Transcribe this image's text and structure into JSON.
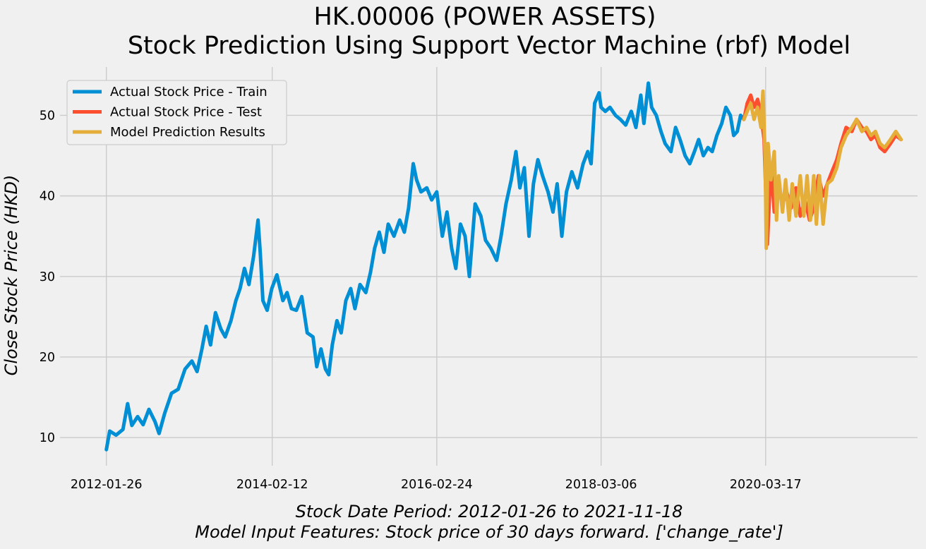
{
  "chart_data": {
    "type": "line",
    "title": [
      "HK.00006 (POWER ASSETS)",
      "Stock Prediction Using Support Vector Machine (rbf) Model"
    ],
    "xlabel": [
      "Stock Date Period:  2012-01-26 to 2021-11-18",
      "Model Input Features:  Stock price of 30 days forward. ['change_rate']"
    ],
    "ylabel": "Close Stock Price (HKD)",
    "x_ticks": [
      "2012-01-26",
      "2014-02-12",
      "2016-02-24",
      "2018-03-06",
      "2020-03-17"
    ],
    "y_ticks": [
      10,
      20,
      30,
      40,
      50
    ],
    "xlim": [
      "2011-07-01",
      "2022-01-31"
    ],
    "ylim": [
      6.5,
      56
    ],
    "grid": true,
    "legend_position": "top-left",
    "series": [
      {
        "name": "Actual Stock Price - Train",
        "color": "#008fd5",
        "points": [
          [
            "2012-01-26",
            8.5
          ],
          [
            "2012-02-10",
            10.8
          ],
          [
            "2012-03-10",
            10.3
          ],
          [
            "2012-04-10",
            11.0
          ],
          [
            "2012-05-01",
            14.2
          ],
          [
            "2012-05-20",
            11.5
          ],
          [
            "2012-06-15",
            12.6
          ],
          [
            "2012-07-10",
            11.6
          ],
          [
            "2012-08-05",
            13.5
          ],
          [
            "2012-09-01",
            12.0
          ],
          [
            "2012-09-20",
            10.5
          ],
          [
            "2012-10-15",
            13.0
          ],
          [
            "2012-11-15",
            15.5
          ],
          [
            "2012-12-15",
            16.0
          ],
          [
            "2013-01-15",
            18.5
          ],
          [
            "2013-02-15",
            19.5
          ],
          [
            "2013-03-10",
            18.2
          ],
          [
            "2013-04-01",
            21.0
          ],
          [
            "2013-04-20",
            23.8
          ],
          [
            "2013-05-10",
            21.5
          ],
          [
            "2013-06-01",
            25.5
          ],
          [
            "2013-06-25",
            23.5
          ],
          [
            "2013-07-15",
            22.5
          ],
          [
            "2013-08-10",
            24.5
          ],
          [
            "2013-09-01",
            27.0
          ],
          [
            "2013-09-20",
            28.5
          ],
          [
            "2013-10-10",
            31.0
          ],
          [
            "2013-10-30",
            29.0
          ],
          [
            "2013-11-20",
            32.5
          ],
          [
            "2013-12-10",
            37.0
          ],
          [
            "2013-12-20",
            33.0
          ],
          [
            "2014-01-01",
            27.0
          ],
          [
            "2014-01-20",
            25.8
          ],
          [
            "2014-02-10",
            28.5
          ],
          [
            "2014-03-05",
            30.2
          ],
          [
            "2014-04-01",
            27.0
          ],
          [
            "2014-04-20",
            28.0
          ],
          [
            "2014-05-10",
            26.0
          ],
          [
            "2014-06-01",
            25.8
          ],
          [
            "2014-06-25",
            27.5
          ],
          [
            "2014-07-20",
            23.0
          ],
          [
            "2014-08-15",
            22.5
          ],
          [
            "2014-09-01",
            18.8
          ],
          [
            "2014-09-20",
            21.0
          ],
          [
            "2014-10-10",
            18.5
          ],
          [
            "2014-10-25",
            17.8
          ],
          [
            "2014-11-10",
            21.5
          ],
          [
            "2014-12-01",
            24.5
          ],
          [
            "2014-12-20",
            23.0
          ],
          [
            "2015-01-10",
            27.0
          ],
          [
            "2015-02-01",
            28.5
          ],
          [
            "2015-02-20",
            26.0
          ],
          [
            "2015-03-15",
            29.0
          ],
          [
            "2015-04-10",
            28.0
          ],
          [
            "2015-05-01",
            30.5
          ],
          [
            "2015-05-20",
            33.5
          ],
          [
            "2015-06-10",
            35.5
          ],
          [
            "2015-07-01",
            33.0
          ],
          [
            "2015-07-20",
            36.5
          ],
          [
            "2015-08-15",
            35.0
          ],
          [
            "2015-09-10",
            37.0
          ],
          [
            "2015-10-01",
            35.5
          ],
          [
            "2015-10-20",
            38.5
          ],
          [
            "2015-11-10",
            44.0
          ],
          [
            "2015-11-25",
            42.0
          ],
          [
            "2015-12-15",
            40.5
          ],
          [
            "2016-01-10",
            41.0
          ],
          [
            "2016-02-01",
            39.5
          ],
          [
            "2016-02-24",
            40.5
          ],
          [
            "2016-03-20",
            35.0
          ],
          [
            "2016-04-10",
            38.0
          ],
          [
            "2016-05-01",
            33.5
          ],
          [
            "2016-05-20",
            31.0
          ],
          [
            "2016-06-10",
            36.5
          ],
          [
            "2016-07-01",
            35.0
          ],
          [
            "2016-07-20",
            30.0
          ],
          [
            "2016-08-15",
            39.0
          ],
          [
            "2016-09-10",
            37.5
          ],
          [
            "2016-10-01",
            34.5
          ],
          [
            "2016-10-25",
            33.5
          ],
          [
            "2016-11-20",
            32.0
          ],
          [
            "2016-12-10",
            35.0
          ],
          [
            "2017-01-01",
            39.0
          ],
          [
            "2017-01-25",
            42.0
          ],
          [
            "2017-02-15",
            45.5
          ],
          [
            "2017-03-05",
            41.0
          ],
          [
            "2017-03-25",
            43.5
          ],
          [
            "2017-04-15",
            35.0
          ],
          [
            "2017-05-05",
            41.5
          ],
          [
            "2017-05-25",
            44.5
          ],
          [
            "2017-06-15",
            42.5
          ],
          [
            "2017-07-10",
            40.5
          ],
          [
            "2017-08-01",
            38.0
          ],
          [
            "2017-08-20",
            41.5
          ],
          [
            "2017-09-10",
            35.0
          ],
          [
            "2017-10-01",
            40.5
          ],
          [
            "2017-10-25",
            43.0
          ],
          [
            "2017-11-20",
            41.0
          ],
          [
            "2017-12-15",
            44.0
          ],
          [
            "2018-01-05",
            45.5
          ],
          [
            "2018-01-20",
            44.0
          ],
          [
            "2018-02-05",
            51.5
          ],
          [
            "2018-02-25",
            52.8
          ],
          [
            "2018-03-06",
            51.0
          ],
          [
            "2018-03-25",
            50.5
          ],
          [
            "2018-04-15",
            51.0
          ],
          [
            "2018-05-10",
            50.0
          ],
          [
            "2018-06-01",
            49.5
          ],
          [
            "2018-06-25",
            48.8
          ],
          [
            "2018-07-20",
            50.5
          ],
          [
            "2018-08-10",
            48.5
          ],
          [
            "2018-09-01",
            52.5
          ],
          [
            "2018-09-15",
            49.0
          ],
          [
            "2018-10-05",
            54.0
          ],
          [
            "2018-10-20",
            51.0
          ],
          [
            "2018-11-10",
            50.0
          ],
          [
            "2018-12-01",
            48.0
          ],
          [
            "2018-12-20",
            46.5
          ],
          [
            "2019-01-15",
            45.5
          ],
          [
            "2019-02-05",
            48.5
          ],
          [
            "2019-02-25",
            47.0
          ],
          [
            "2019-03-20",
            45.0
          ],
          [
            "2019-04-10",
            44.0
          ],
          [
            "2019-05-01",
            45.5
          ],
          [
            "2019-05-20",
            47.0
          ],
          [
            "2019-06-10",
            45.0
          ],
          [
            "2019-07-01",
            46.0
          ],
          [
            "2019-07-20",
            45.5
          ],
          [
            "2019-08-10",
            47.5
          ],
          [
            "2019-09-01",
            49.0
          ],
          [
            "2019-09-20",
            51.0
          ],
          [
            "2019-10-10",
            50.0
          ],
          [
            "2019-10-25",
            47.5
          ],
          [
            "2019-11-10",
            48.0
          ],
          [
            "2019-11-25",
            50.0
          ],
          [
            "2019-12-10",
            49.5
          ]
        ]
      },
      {
        "name": "Actual Stock Price - Test",
        "color": "#fc4f30",
        "points": [
          [
            "2019-12-10",
            49.5
          ],
          [
            "2019-12-25",
            51.5
          ],
          [
            "2020-01-10",
            52.5
          ],
          [
            "2020-01-25",
            51.0
          ],
          [
            "2020-02-10",
            52.0
          ],
          [
            "2020-02-25",
            50.0
          ],
          [
            "2020-03-10",
            47.0
          ],
          [
            "2020-03-25",
            34.0
          ],
          [
            "2020-04-10",
            44.0
          ],
          [
            "2020-04-25",
            38.0
          ],
          [
            "2020-05-10",
            42.0
          ],
          [
            "2020-06-01",
            39.0
          ],
          [
            "2020-06-20",
            40.5
          ],
          [
            "2020-07-10",
            38.5
          ],
          [
            "2020-08-01",
            41.0
          ],
          [
            "2020-08-20",
            37.5
          ],
          [
            "2020-09-10",
            39.5
          ],
          [
            "2020-10-01",
            37.0
          ],
          [
            "2020-10-20",
            38.5
          ],
          [
            "2020-11-10",
            42.5
          ],
          [
            "2020-12-01",
            40.0
          ],
          [
            "2020-12-20",
            41.5
          ],
          [
            "2021-01-10",
            43.0
          ],
          [
            "2021-02-01",
            44.5
          ],
          [
            "2021-02-20",
            46.5
          ],
          [
            "2021-03-15",
            48.5
          ],
          [
            "2021-04-10",
            48.0
          ],
          [
            "2021-05-01",
            49.5
          ],
          [
            "2021-05-25",
            48.5
          ],
          [
            "2021-06-15",
            48.0
          ],
          [
            "2021-07-05",
            47.0
          ],
          [
            "2021-07-25",
            47.5
          ],
          [
            "2021-08-15",
            46.0
          ],
          [
            "2021-09-05",
            45.5
          ],
          [
            "2021-10-01",
            46.5
          ],
          [
            "2021-10-25",
            47.5
          ],
          [
            "2021-11-18",
            47.0
          ]
        ]
      },
      {
        "name": "Model Prediction Results",
        "color": "#e5ae38",
        "points": [
          [
            "2019-12-10",
            49.5
          ],
          [
            "2019-12-25",
            50.5
          ],
          [
            "2020-01-10",
            51.5
          ],
          [
            "2020-01-25",
            49.5
          ],
          [
            "2020-02-10",
            51.0
          ],
          [
            "2020-02-25",
            48.5
          ],
          [
            "2020-03-05",
            53.0
          ],
          [
            "2020-03-15",
            45.0
          ],
          [
            "2020-03-20",
            33.5
          ],
          [
            "2020-03-28",
            46.5
          ],
          [
            "2020-04-10",
            42.0
          ],
          [
            "2020-04-25",
            45.5
          ],
          [
            "2020-05-05",
            37.0
          ],
          [
            "2020-05-15",
            42.5
          ],
          [
            "2020-06-01",
            38.0
          ],
          [
            "2020-06-15",
            42.0
          ],
          [
            "2020-07-01",
            37.0
          ],
          [
            "2020-07-15",
            41.5
          ],
          [
            "2020-08-01",
            37.5
          ],
          [
            "2020-08-20",
            42.5
          ],
          [
            "2020-09-05",
            37.5
          ],
          [
            "2020-09-20",
            42.5
          ],
          [
            "2020-10-05",
            37.0
          ],
          [
            "2020-10-20",
            42.5
          ],
          [
            "2020-11-01",
            36.5
          ],
          [
            "2020-11-15",
            42.5
          ],
          [
            "2020-12-01",
            36.5
          ],
          [
            "2020-12-20",
            41.5
          ],
          [
            "2021-01-10",
            42.0
          ],
          [
            "2021-02-01",
            43.5
          ],
          [
            "2021-02-20",
            46.0
          ],
          [
            "2021-03-15",
            47.5
          ],
          [
            "2021-04-10",
            48.5
          ],
          [
            "2021-05-01",
            49.5
          ],
          [
            "2021-05-25",
            48.0
          ],
          [
            "2021-06-15",
            48.5
          ],
          [
            "2021-07-05",
            47.5
          ],
          [
            "2021-07-25",
            48.0
          ],
          [
            "2021-08-15",
            46.5
          ],
          [
            "2021-09-05",
            46.0
          ],
          [
            "2021-10-01",
            47.0
          ],
          [
            "2021-10-25",
            48.0
          ],
          [
            "2021-11-18",
            47.0
          ]
        ]
      }
    ]
  }
}
